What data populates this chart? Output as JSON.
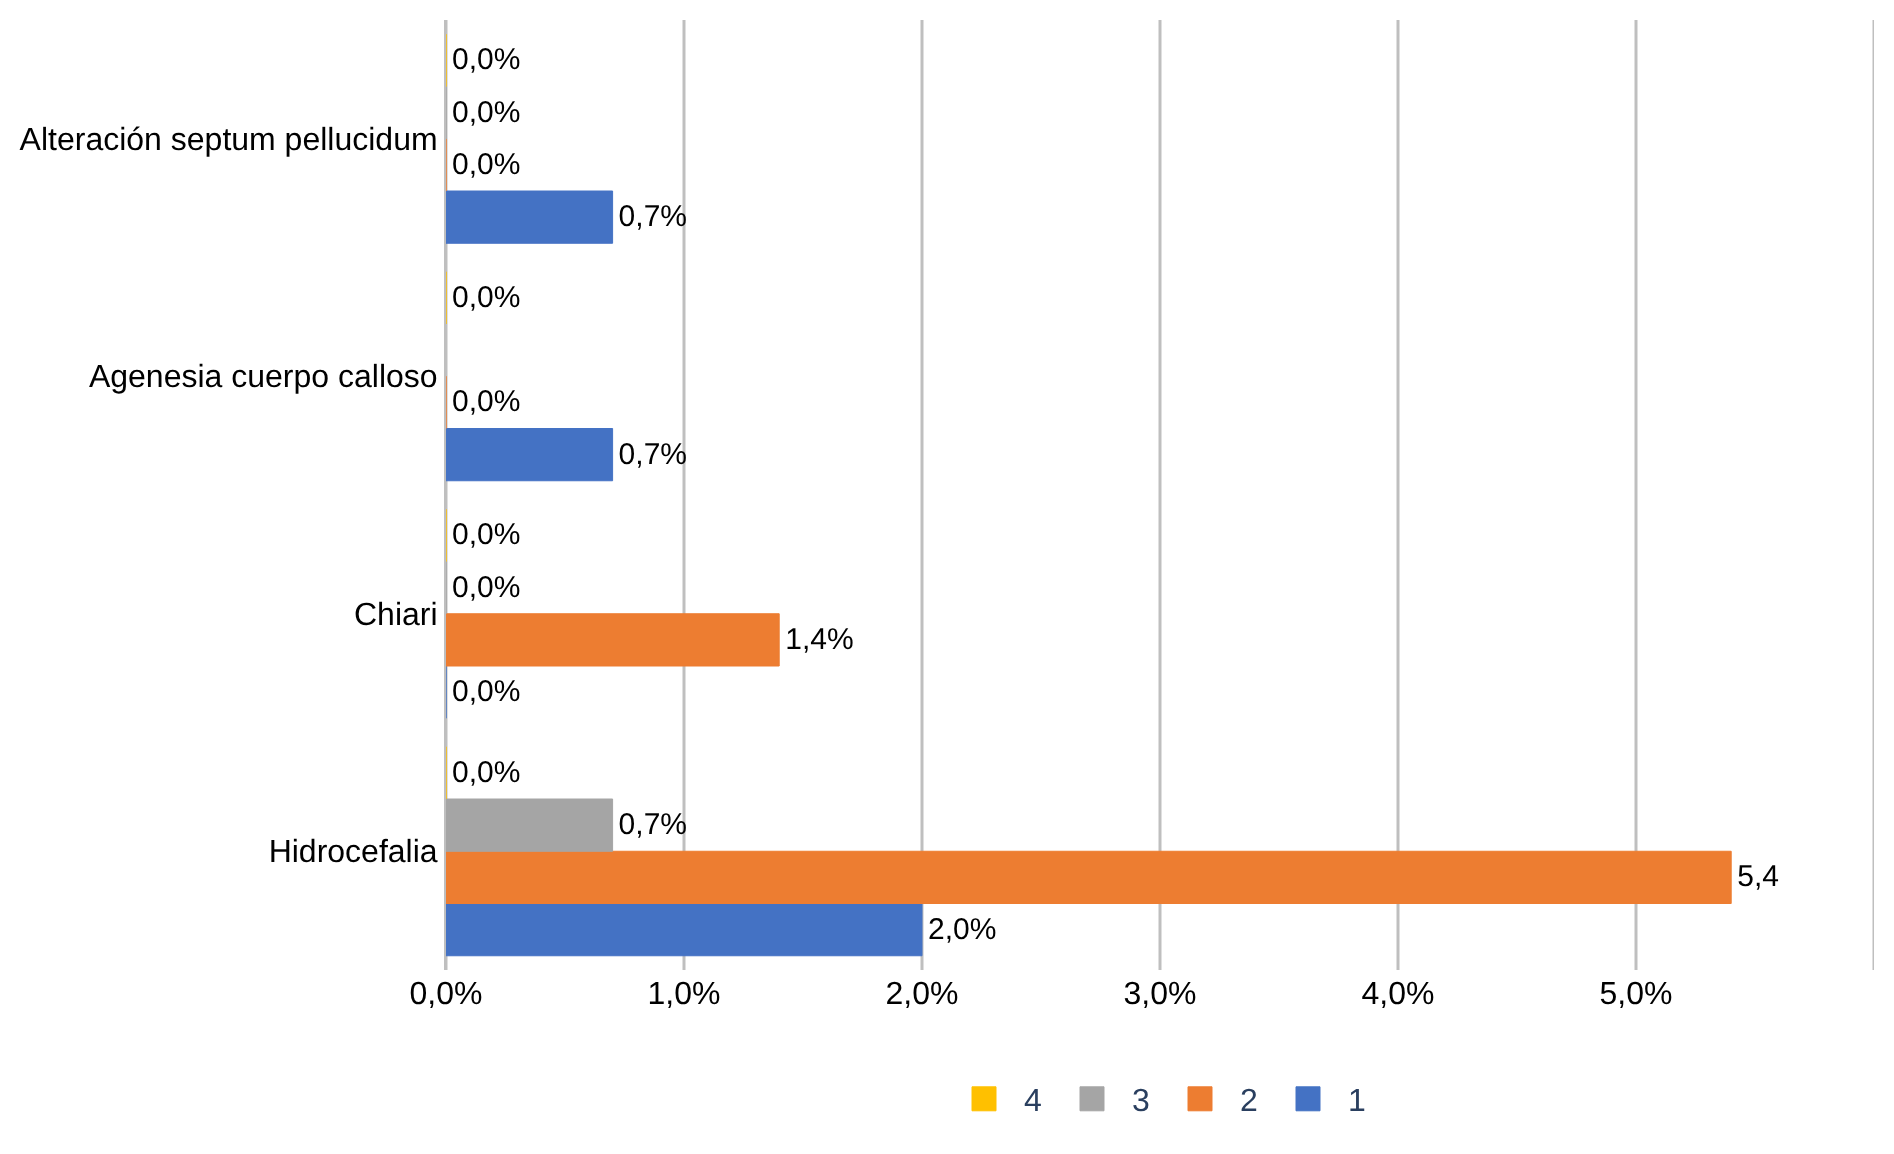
{
  "chart_data": {
    "type": "bar",
    "orientation": "horizontal",
    "categories": [
      "Alteración septum pellucidum",
      "Agenesia cuerpo calloso",
      "Chiari",
      "Hidrocefalia"
    ],
    "series": [
      {
        "name": "4",
        "color": "#ffc000",
        "values": [
          0.0,
          0.0,
          0.0,
          0.0
        ],
        "value_labels": [
          "0,0%",
          "0,0%",
          "0,0%",
          "0,0%"
        ]
      },
      {
        "name": "3",
        "color": "#a5a5a5",
        "values": [
          0.0,
          null,
          0.0,
          0.7
        ],
        "value_labels": [
          "0,0%",
          null,
          "0,0%",
          "0,7%"
        ]
      },
      {
        "name": "2",
        "color": "#ed7d31",
        "values": [
          0.0,
          0.0,
          1.4,
          5.4
        ],
        "value_labels": [
          "0,0%",
          "0,0%",
          "1,4%",
          "5,4"
        ]
      },
      {
        "name": "1",
        "color": "#4472c4",
        "values": [
          0.7,
          0.7,
          0.0,
          2.0
        ],
        "value_labels": [
          "0,7%",
          "0,7%",
          "0,0%",
          "2,0%"
        ]
      }
    ],
    "xlim": [
      0,
      6
    ],
    "xticks": [
      {
        "value": 0,
        "label": "0,0%"
      },
      {
        "value": 1,
        "label": "1,0%"
      },
      {
        "value": 2,
        "label": "2,0%"
      },
      {
        "value": 3,
        "label": "3,0%"
      },
      {
        "value": 4,
        "label": "4,0%"
      },
      {
        "value": 5,
        "label": "5,0%"
      },
      {
        "value": 6,
        "label": null
      }
    ],
    "grid": "x",
    "legend": "bottom"
  }
}
